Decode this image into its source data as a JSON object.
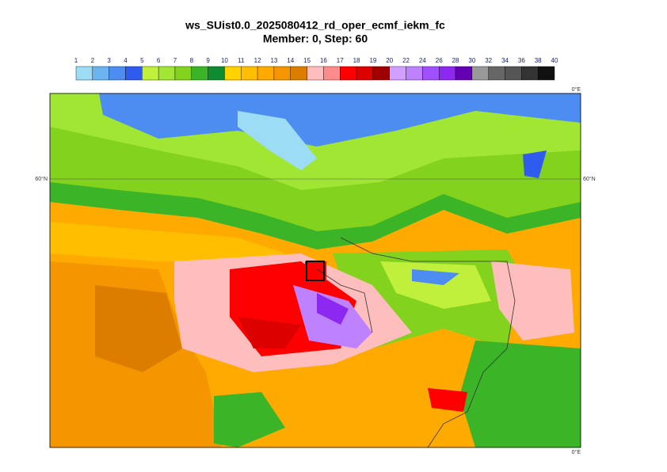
{
  "title": "ws_SUist0.0_2025080412_rd_oper_ecmf_iekm_fc",
  "subtitle": "Member: 0, Step: 60",
  "colorbar": {
    "ticks": [
      1,
      2,
      3,
      4,
      5,
      6,
      7,
      8,
      9,
      10,
      11,
      12,
      13,
      14,
      15,
      16,
      17,
      18,
      19,
      20,
      22,
      24,
      26,
      28,
      30,
      32,
      34,
      36,
      38,
      40
    ],
    "colors": [
      "#9ddcf5",
      "#6cb4f0",
      "#4d8cf0",
      "#2f5bef",
      "#c0f03c",
      "#a0e632",
      "#82d21e",
      "#3cb428",
      "#0f8c32",
      "#ffd200",
      "#ffbe00",
      "#ffaa00",
      "#f59600",
      "#dc7d00",
      "#ffbebe",
      "#ff8c8c",
      "#ff0000",
      "#dc0000",
      "#a00000",
      "#d2a0ff",
      "#be82ff",
      "#a050ff",
      "#8c28f0",
      "#6400b4",
      "#999999",
      "#666666",
      "#555555",
      "#333333",
      "#111111"
    ]
  },
  "map": {
    "lon_label_top": "0°E",
    "lon_label_bottom": "0°E",
    "lat_label_left": "60°N",
    "lat_label_right": "60°N"
  }
}
